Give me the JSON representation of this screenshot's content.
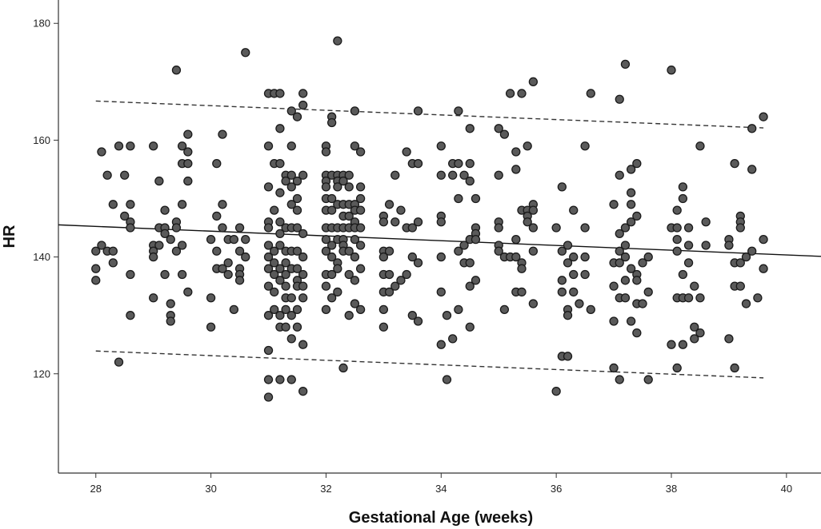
{
  "chart_data": {
    "type": "scatter",
    "title": "",
    "xlabel": "Gestational Age (weeks)",
    "ylabel": "HR",
    "xlim": [
      27.35,
      40.6
    ],
    "ylim": [
      103,
      184
    ],
    "xticks": [
      28,
      30,
      32,
      34,
      36,
      38,
      40
    ],
    "yticks": [
      120,
      140,
      160,
      180
    ],
    "grid": false,
    "legend": "none",
    "colors": {
      "point_fill": "#5a5a5a",
      "point_edge": "#1a1a1a",
      "fit_line": "#111111",
      "interval_line": "#333333"
    },
    "fit_line": {
      "x": [
        27.35,
        40.6
      ],
      "y": [
        145.5,
        140.1
      ]
    },
    "prediction_interval": {
      "upper": {
        "x": [
          28,
          39.6
        ],
        "y": [
          166.7,
          162.1
        ]
      },
      "lower": {
        "x": [
          28,
          39.6
        ],
        "y": [
          123.9,
          119.3
        ]
      }
    },
    "points": [
      [
        28.0,
        141
      ],
      [
        28.0,
        138
      ],
      [
        28.0,
        136
      ],
      [
        28.1,
        158
      ],
      [
        28.1,
        142
      ],
      [
        28.2,
        154
      ],
      [
        28.2,
        141
      ],
      [
        28.3,
        149
      ],
      [
        28.3,
        141
      ],
      [
        28.3,
        139
      ],
      [
        28.4,
        159
      ],
      [
        28.4,
        122
      ],
      [
        28.5,
        154
      ],
      [
        28.5,
        147
      ],
      [
        28.6,
        159
      ],
      [
        28.6,
        149
      ],
      [
        28.6,
        146
      ],
      [
        28.6,
        145
      ],
      [
        28.6,
        137
      ],
      [
        28.6,
        130
      ],
      [
        29.0,
        159
      ],
      [
        29.0,
        142
      ],
      [
        29.0,
        141
      ],
      [
        29.0,
        140
      ],
      [
        29.0,
        133
      ],
      [
        29.1,
        153
      ],
      [
        29.1,
        145
      ],
      [
        29.1,
        142
      ],
      [
        29.2,
        145
      ],
      [
        29.2,
        144
      ],
      [
        29.2,
        137
      ],
      [
        29.2,
        148
      ],
      [
        29.3,
        143
      ],
      [
        29.3,
        132
      ],
      [
        29.3,
        130
      ],
      [
        29.3,
        129
      ],
      [
        29.4,
        172
      ],
      [
        29.4,
        146
      ],
      [
        29.4,
        145
      ],
      [
        29.4,
        141
      ],
      [
        29.5,
        159
      ],
      [
        29.5,
        156
      ],
      [
        29.5,
        149
      ],
      [
        29.5,
        142
      ],
      [
        29.5,
        137
      ],
      [
        29.6,
        161
      ],
      [
        29.6,
        158
      ],
      [
        29.6,
        156
      ],
      [
        29.6,
        153
      ],
      [
        29.6,
        134
      ],
      [
        30.0,
        143
      ],
      [
        30.0,
        133
      ],
      [
        30.0,
        128
      ],
      [
        30.1,
        156
      ],
      [
        30.1,
        147
      ],
      [
        30.1,
        141
      ],
      [
        30.1,
        138
      ],
      [
        30.2,
        161
      ],
      [
        30.2,
        149
      ],
      [
        30.2,
        145
      ],
      [
        30.2,
        138
      ],
      [
        30.3,
        143
      ],
      [
        30.3,
        139
      ],
      [
        30.3,
        137
      ],
      [
        30.4,
        143
      ],
      [
        30.4,
        131
      ],
      [
        30.5,
        145
      ],
      [
        30.5,
        141
      ],
      [
        30.5,
        138
      ],
      [
        30.5,
        137
      ],
      [
        30.5,
        136
      ],
      [
        30.6,
        175
      ],
      [
        30.6,
        143
      ],
      [
        30.6,
        140
      ],
      [
        31.0,
        168
      ],
      [
        31.0,
        159
      ],
      [
        31.0,
        152
      ],
      [
        31.0,
        146
      ],
      [
        31.0,
        145
      ],
      [
        31.0,
        142
      ],
      [
        31.0,
        140
      ],
      [
        31.0,
        138
      ],
      [
        31.0,
        135
      ],
      [
        31.0,
        130
      ],
      [
        31.0,
        124
      ],
      [
        31.0,
        119
      ],
      [
        31.0,
        116
      ],
      [
        31.1,
        168
      ],
      [
        31.1,
        156
      ],
      [
        31.1,
        148
      ],
      [
        31.1,
        141
      ],
      [
        31.1,
        139
      ],
      [
        31.1,
        137
      ],
      [
        31.1,
        134
      ],
      [
        31.1,
        131
      ],
      [
        31.2,
        168
      ],
      [
        31.2,
        162
      ],
      [
        31.2,
        156
      ],
      [
        31.2,
        151
      ],
      [
        31.2,
        146
      ],
      [
        31.2,
        144
      ],
      [
        31.2,
        142
      ],
      [
        31.2,
        138
      ],
      [
        31.2,
        136
      ],
      [
        31.2,
        130
      ],
      [
        31.2,
        128
      ],
      [
        31.2,
        119
      ],
      [
        31.3,
        154
      ],
      [
        31.3,
        153
      ],
      [
        31.3,
        145
      ],
      [
        31.3,
        141
      ],
      [
        31.3,
        139
      ],
      [
        31.3,
        137
      ],
      [
        31.3,
        135
      ],
      [
        31.3,
        133
      ],
      [
        31.3,
        131
      ],
      [
        31.3,
        128
      ],
      [
        31.4,
        165
      ],
      [
        31.4,
        159
      ],
      [
        31.4,
        154
      ],
      [
        31.4,
        152
      ],
      [
        31.4,
        149
      ],
      [
        31.4,
        145
      ],
      [
        31.4,
        141
      ],
      [
        31.4,
        138
      ],
      [
        31.4,
        133
      ],
      [
        31.4,
        130
      ],
      [
        31.4,
        126
      ],
      [
        31.4,
        119
      ],
      [
        31.5,
        164
      ],
      [
        31.5,
        153
      ],
      [
        31.5,
        150
      ],
      [
        31.5,
        148
      ],
      [
        31.5,
        145
      ],
      [
        31.5,
        141
      ],
      [
        31.5,
        138
      ],
      [
        31.5,
        136
      ],
      [
        31.5,
        135
      ],
      [
        31.5,
        131
      ],
      [
        31.5,
        128
      ],
      [
        31.6,
        168
      ],
      [
        31.6,
        166
      ],
      [
        31.6,
        154
      ],
      [
        31.6,
        144
      ],
      [
        31.6,
        140
      ],
      [
        31.6,
        137
      ],
      [
        31.6,
        135
      ],
      [
        31.6,
        133
      ],
      [
        31.6,
        125
      ],
      [
        31.6,
        117
      ],
      [
        32.0,
        159
      ],
      [
        32.0,
        158
      ],
      [
        32.0,
        154
      ],
      [
        32.0,
        153
      ],
      [
        32.0,
        152
      ],
      [
        32.0,
        150
      ],
      [
        32.0,
        148
      ],
      [
        32.0,
        145
      ],
      [
        32.0,
        143
      ],
      [
        32.0,
        141
      ],
      [
        32.0,
        137
      ],
      [
        32.0,
        135
      ],
      [
        32.0,
        131
      ],
      [
        32.1,
        164
      ],
      [
        32.1,
        163
      ],
      [
        32.1,
        154
      ],
      [
        32.1,
        150
      ],
      [
        32.1,
        148
      ],
      [
        32.1,
        145
      ],
      [
        32.1,
        142
      ],
      [
        32.1,
        140
      ],
      [
        32.1,
        137
      ],
      [
        32.1,
        133
      ],
      [
        32.2,
        177
      ],
      [
        32.2,
        154
      ],
      [
        32.2,
        153
      ],
      [
        32.2,
        152
      ],
      [
        32.2,
        149
      ],
      [
        32.2,
        145
      ],
      [
        32.2,
        143
      ],
      [
        32.2,
        139
      ],
      [
        32.2,
        138
      ],
      [
        32.2,
        134
      ],
      [
        32.3,
        154
      ],
      [
        32.3,
        153
      ],
      [
        32.3,
        149
      ],
      [
        32.3,
        147
      ],
      [
        32.3,
        145
      ],
      [
        32.3,
        143
      ],
      [
        32.3,
        142
      ],
      [
        32.3,
        141
      ],
      [
        32.3,
        121
      ],
      [
        32.4,
        154
      ],
      [
        32.4,
        152
      ],
      [
        32.4,
        149
      ],
      [
        32.4,
        147
      ],
      [
        32.4,
        145
      ],
      [
        32.4,
        141
      ],
      [
        32.4,
        137
      ],
      [
        32.4,
        130
      ],
      [
        32.5,
        165
      ],
      [
        32.5,
        159
      ],
      [
        32.5,
        149
      ],
      [
        32.5,
        148
      ],
      [
        32.5,
        146
      ],
      [
        32.5,
        145
      ],
      [
        32.5,
        143
      ],
      [
        32.5,
        140
      ],
      [
        32.5,
        136
      ],
      [
        32.5,
        132
      ],
      [
        32.6,
        158
      ],
      [
        32.6,
        152
      ],
      [
        32.6,
        150
      ],
      [
        32.6,
        148
      ],
      [
        32.6,
        145
      ],
      [
        32.6,
        142
      ],
      [
        32.6,
        138
      ],
      [
        32.6,
        131
      ],
      [
        33.0,
        147
      ],
      [
        33.0,
        146
      ],
      [
        33.0,
        141
      ],
      [
        33.0,
        140
      ],
      [
        33.0,
        137
      ],
      [
        33.0,
        134
      ],
      [
        33.0,
        131
      ],
      [
        33.0,
        128
      ],
      [
        33.1,
        149
      ],
      [
        33.1,
        141
      ],
      [
        33.1,
        137
      ],
      [
        33.1,
        134
      ],
      [
        33.2,
        154
      ],
      [
        33.2,
        146
      ],
      [
        33.2,
        135
      ],
      [
        33.3,
        148
      ],
      [
        33.3,
        136
      ],
      [
        33.4,
        158
      ],
      [
        33.4,
        145
      ],
      [
        33.4,
        137
      ],
      [
        33.5,
        156
      ],
      [
        33.5,
        145
      ],
      [
        33.5,
        140
      ],
      [
        33.5,
        130
      ],
      [
        33.6,
        165
      ],
      [
        33.6,
        156
      ],
      [
        33.6,
        146
      ],
      [
        33.6,
        139
      ],
      [
        33.6,
        129
      ],
      [
        34.0,
        159
      ],
      [
        34.0,
        154
      ],
      [
        34.0,
        147
      ],
      [
        34.0,
        146
      ],
      [
        34.0,
        140
      ],
      [
        34.0,
        134
      ],
      [
        34.0,
        125
      ],
      [
        34.1,
        119
      ],
      [
        34.1,
        130
      ],
      [
        34.2,
        156
      ],
      [
        34.2,
        154
      ],
      [
        34.2,
        126
      ],
      [
        34.3,
        165
      ],
      [
        34.3,
        156
      ],
      [
        34.3,
        150
      ],
      [
        34.3,
        141
      ],
      [
        34.3,
        131
      ],
      [
        34.4,
        154
      ],
      [
        34.4,
        142
      ],
      [
        34.4,
        139
      ],
      [
        34.5,
        162
      ],
      [
        34.5,
        156
      ],
      [
        34.5,
        153
      ],
      [
        34.5,
        143
      ],
      [
        34.5,
        139
      ],
      [
        34.5,
        135
      ],
      [
        34.5,
        128
      ],
      [
        34.6,
        150
      ],
      [
        34.6,
        145
      ],
      [
        34.6,
        144
      ],
      [
        34.6,
        143
      ],
      [
        34.6,
        136
      ],
      [
        35.0,
        162
      ],
      [
        35.0,
        154
      ],
      [
        35.0,
        146
      ],
      [
        35.0,
        145
      ],
      [
        35.0,
        142
      ],
      [
        35.0,
        141
      ],
      [
        35.1,
        161
      ],
      [
        35.1,
        140
      ],
      [
        35.1,
        131
      ],
      [
        35.2,
        168
      ],
      [
        35.2,
        140
      ],
      [
        35.3,
        158
      ],
      [
        35.3,
        155
      ],
      [
        35.3,
        143
      ],
      [
        35.3,
        140
      ],
      [
        35.3,
        134
      ],
      [
        35.4,
        168
      ],
      [
        35.4,
        148
      ],
      [
        35.4,
        139
      ],
      [
        35.4,
        138
      ],
      [
        35.4,
        134
      ],
      [
        35.5,
        159
      ],
      [
        35.5,
        148
      ],
      [
        35.5,
        147
      ],
      [
        35.5,
        146
      ],
      [
        35.6,
        170
      ],
      [
        35.6,
        149
      ],
      [
        35.6,
        148
      ],
      [
        35.6,
        145
      ],
      [
        35.6,
        141
      ],
      [
        35.6,
        132
      ],
      [
        36.0,
        145
      ],
      [
        36.0,
        117
      ],
      [
        36.1,
        152
      ],
      [
        36.1,
        141
      ],
      [
        36.1,
        136
      ],
      [
        36.1,
        134
      ],
      [
        36.1,
        123
      ],
      [
        36.2,
        142
      ],
      [
        36.2,
        139
      ],
      [
        36.2,
        131
      ],
      [
        36.2,
        130
      ],
      [
        36.2,
        123
      ],
      [
        36.3,
        148
      ],
      [
        36.3,
        140
      ],
      [
        36.3,
        137
      ],
      [
        36.3,
        134
      ],
      [
        36.4,
        132
      ],
      [
        36.5,
        159
      ],
      [
        36.5,
        145
      ],
      [
        36.5,
        140
      ],
      [
        36.5,
        137
      ],
      [
        36.6,
        168
      ],
      [
        36.6,
        131
      ],
      [
        37.0,
        149
      ],
      [
        37.0,
        139
      ],
      [
        37.0,
        135
      ],
      [
        37.0,
        129
      ],
      [
        37.0,
        121
      ],
      [
        37.1,
        167
      ],
      [
        37.1,
        154
      ],
      [
        37.1,
        144
      ],
      [
        37.1,
        141
      ],
      [
        37.1,
        139
      ],
      [
        37.1,
        133
      ],
      [
        37.1,
        119
      ],
      [
        37.2,
        173
      ],
      [
        37.2,
        145
      ],
      [
        37.2,
        142
      ],
      [
        37.2,
        140
      ],
      [
        37.2,
        136
      ],
      [
        37.2,
        133
      ],
      [
        37.3,
        155
      ],
      [
        37.3,
        151
      ],
      [
        37.3,
        149
      ],
      [
        37.3,
        146
      ],
      [
        37.3,
        138
      ],
      [
        37.3,
        129
      ],
      [
        37.4,
        156
      ],
      [
        37.4,
        147
      ],
      [
        37.4,
        137
      ],
      [
        37.4,
        136
      ],
      [
        37.4,
        132
      ],
      [
        37.4,
        127
      ],
      [
        37.5,
        139
      ],
      [
        37.5,
        132
      ],
      [
        37.6,
        140
      ],
      [
        37.6,
        134
      ],
      [
        37.6,
        119
      ],
      [
        38.0,
        172
      ],
      [
        38.0,
        145
      ],
      [
        38.0,
        125
      ],
      [
        38.1,
        148
      ],
      [
        38.1,
        145
      ],
      [
        38.1,
        143
      ],
      [
        38.1,
        141
      ],
      [
        38.1,
        133
      ],
      [
        38.1,
        121
      ],
      [
        38.2,
        152
      ],
      [
        38.2,
        150
      ],
      [
        38.2,
        137
      ],
      [
        38.2,
        133
      ],
      [
        38.2,
        125
      ],
      [
        38.3,
        145
      ],
      [
        38.3,
        142
      ],
      [
        38.3,
        139
      ],
      [
        38.3,
        133
      ],
      [
        38.4,
        135
      ],
      [
        38.4,
        128
      ],
      [
        38.4,
        126
      ],
      [
        38.5,
        159
      ],
      [
        38.5,
        133
      ],
      [
        38.5,
        127
      ],
      [
        38.6,
        146
      ],
      [
        38.6,
        142
      ],
      [
        39.0,
        143
      ],
      [
        39.0,
        142
      ],
      [
        39.0,
        126
      ],
      [
        39.1,
        156
      ],
      [
        39.1,
        139
      ],
      [
        39.1,
        135
      ],
      [
        39.1,
        121
      ],
      [
        39.2,
        147
      ],
      [
        39.2,
        146
      ],
      [
        39.2,
        145
      ],
      [
        39.2,
        139
      ],
      [
        39.2,
        135
      ],
      [
        39.3,
        140
      ],
      [
        39.3,
        132
      ],
      [
        39.4,
        162
      ],
      [
        39.4,
        155
      ],
      [
        39.4,
        141
      ],
      [
        39.5,
        133
      ],
      [
        39.6,
        164
      ],
      [
        39.6,
        143
      ],
      [
        39.6,
        138
      ]
    ]
  }
}
